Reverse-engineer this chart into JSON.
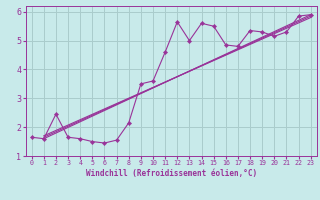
{
  "bg_color": "#c8eaea",
  "grid_color": "#aacccc",
  "line_color": "#993399",
  "marker_color": "#993399",
  "xlabel": "Windchill (Refroidissement éolien,°C)",
  "xlim": [
    -0.5,
    23.5
  ],
  "ylim": [
    1.0,
    6.2
  ],
  "xticks": [
    0,
    1,
    2,
    3,
    4,
    5,
    6,
    7,
    8,
    9,
    10,
    11,
    12,
    13,
    14,
    15,
    16,
    17,
    18,
    19,
    20,
    21,
    22,
    23
  ],
  "yticks": [
    1,
    2,
    3,
    4,
    5,
    6
  ],
  "series_main": {
    "x": [
      0,
      1,
      2,
      3,
      4,
      5,
      6,
      7,
      8,
      9,
      10,
      11,
      12,
      13,
      14,
      15,
      16,
      17,
      18,
      19,
      20,
      21,
      22,
      23
    ],
    "y": [
      1.65,
      1.6,
      2.45,
      1.65,
      1.6,
      1.5,
      1.45,
      1.55,
      2.15,
      3.5,
      3.6,
      4.6,
      5.65,
      5.0,
      5.6,
      5.5,
      4.85,
      4.8,
      5.35,
      5.3,
      5.15,
      5.3,
      5.85,
      5.9
    ]
  },
  "series_line1": {
    "x": [
      1,
      23
    ],
    "y": [
      1.6,
      5.9
    ]
  },
  "series_line2": {
    "x": [
      1,
      23
    ],
    "y": [
      1.65,
      5.85
    ]
  },
  "series_line3": {
    "x": [
      1,
      23
    ],
    "y": [
      1.7,
      5.8
    ]
  }
}
